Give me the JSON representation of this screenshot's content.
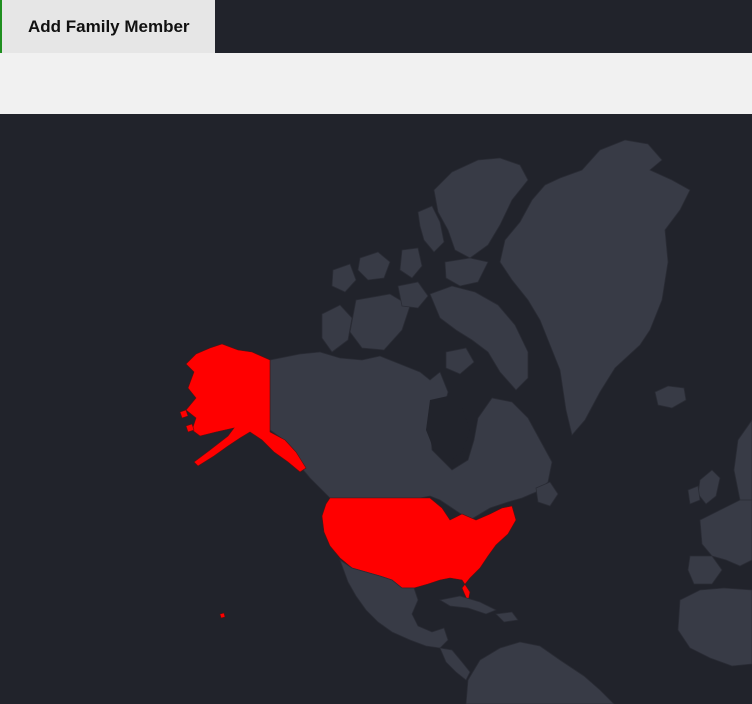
{
  "toolbar": {
    "add_family_member_label": "Add Family Member"
  },
  "colors": {
    "background": "#21232b",
    "land": "#383b46",
    "highlight": "#ff0000",
    "tab_background": "#e6e6e6",
    "panel_background": "#f1f1f1",
    "tab_accent": "#1f8f1f"
  },
  "map": {
    "highlighted_regions": [
      "United States"
    ]
  }
}
